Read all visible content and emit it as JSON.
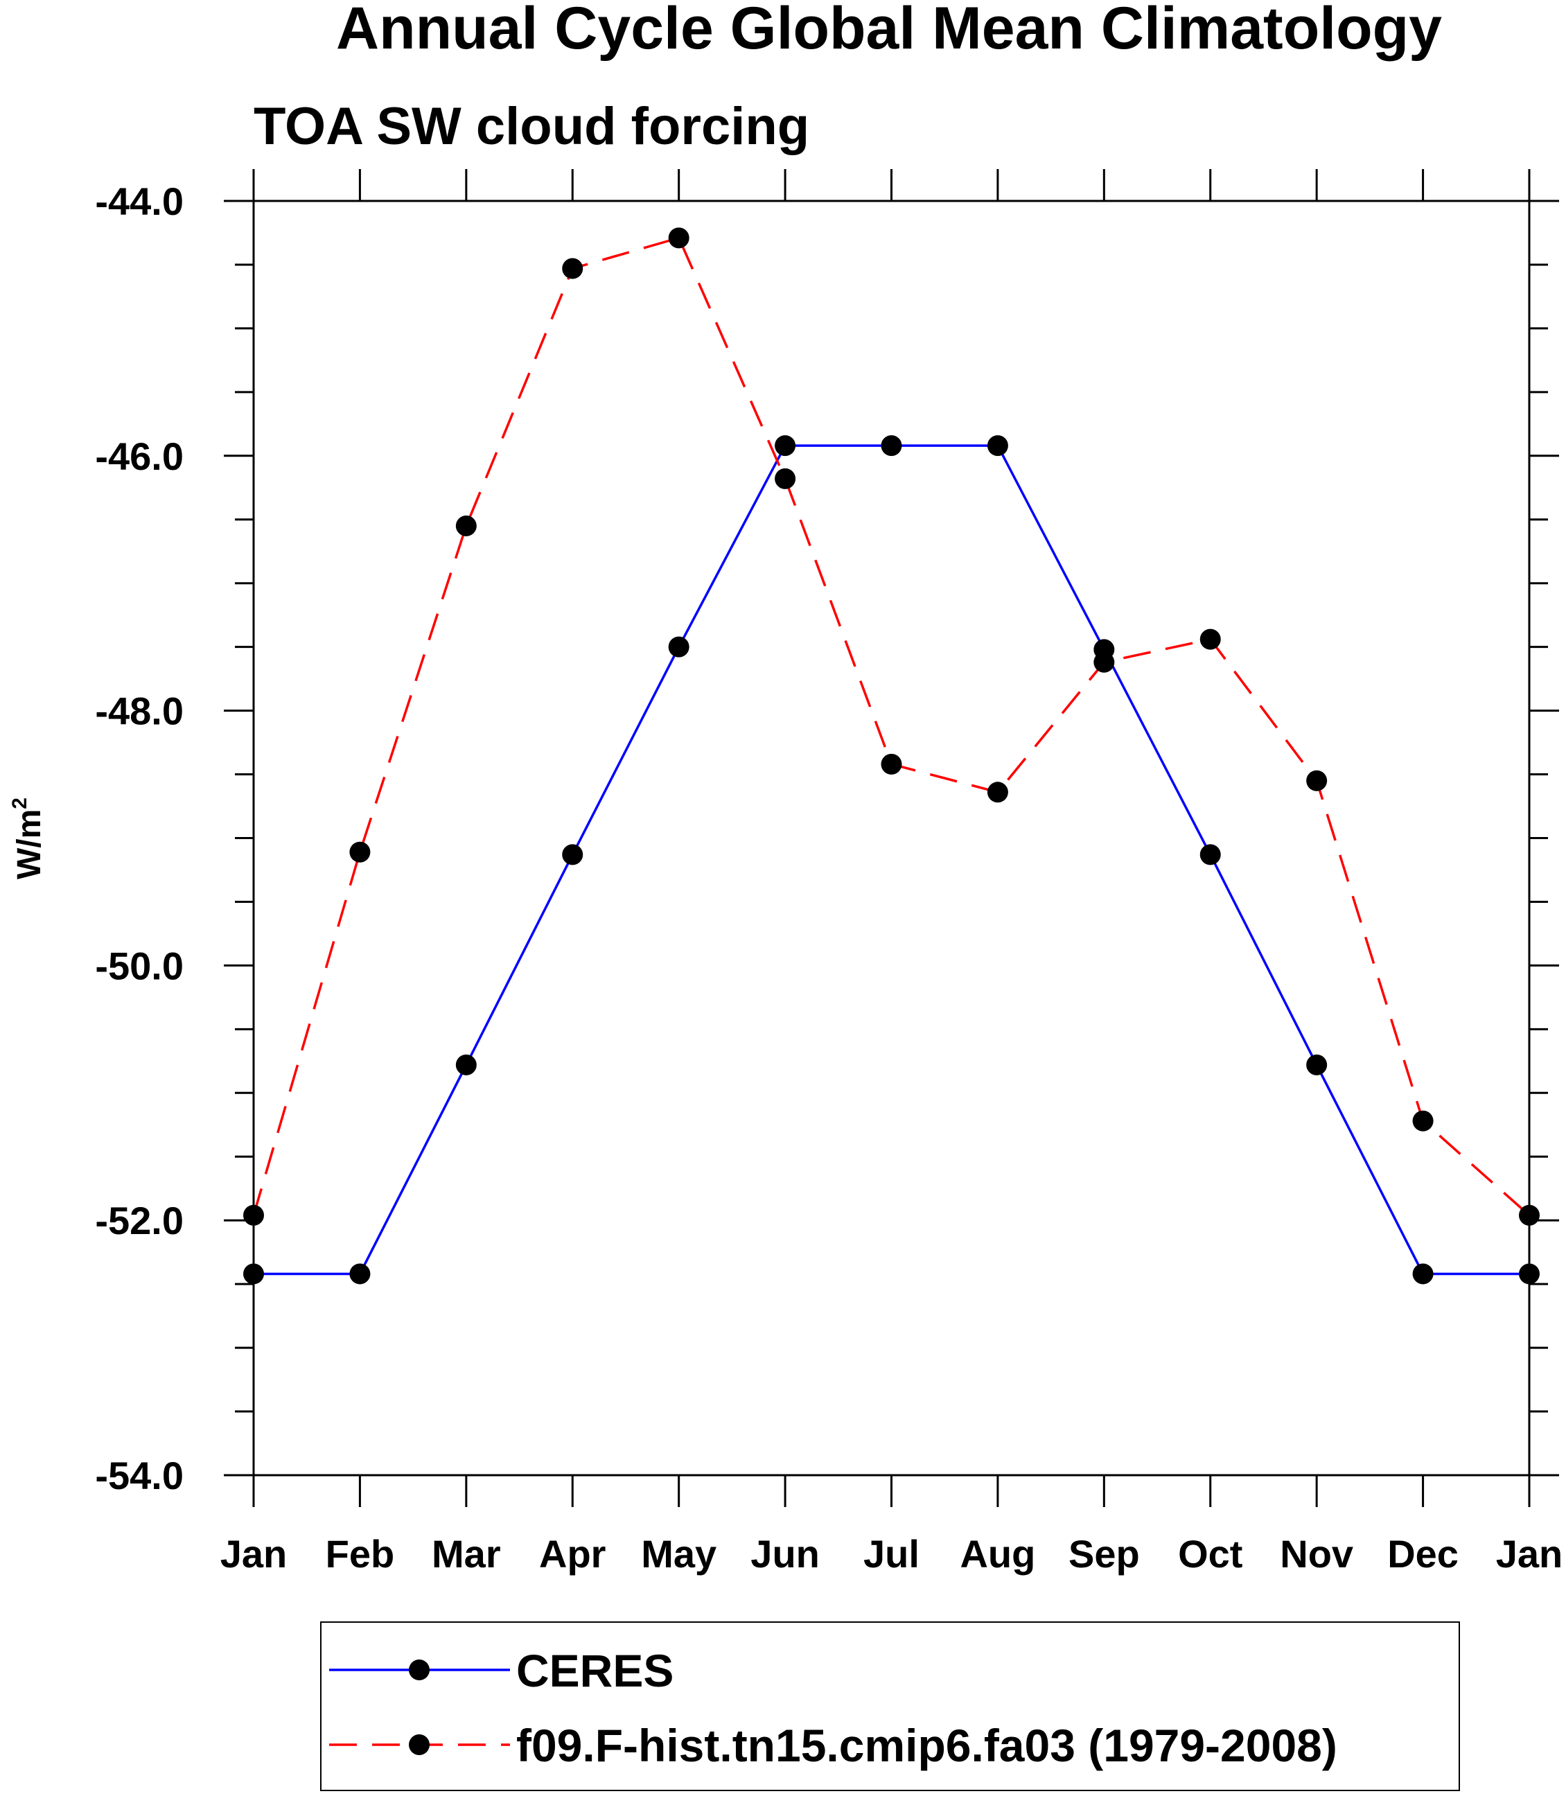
{
  "chart_data": {
    "type": "line",
    "title": "Annual Cycle Global Mean Climatology",
    "subtitle": "TOA SW cloud forcing",
    "xlabel": "",
    "ylabel": "W/m",
    "ylabel_superscript": "2",
    "categories": [
      "Jan",
      "Feb",
      "Mar",
      "Apr",
      "May",
      "Jun",
      "Jul",
      "Aug",
      "Sep",
      "Oct",
      "Nov",
      "Dec",
      "Jan"
    ],
    "ylim": [
      -54.0,
      -44.0
    ],
    "yticks": [
      -44.0,
      -46.0,
      -48.0,
      -50.0,
      -52.0,
      -54.0
    ],
    "ytick_labels": [
      "-44.0",
      "-46.0",
      "-48.0",
      "-50.0",
      "-52.0",
      "-54.0"
    ],
    "grid": false,
    "legend_position": "bottom",
    "series": [
      {
        "name": "CERES",
        "color": "#0000ff",
        "dash": "solid",
        "values": [
          -52.42,
          -52.42,
          -50.78,
          -49.13,
          -47.5,
          -45.92,
          -45.92,
          -45.92,
          -47.52,
          -49.13,
          -50.78,
          -52.42,
          -52.42
        ]
      },
      {
        "name": "f09.F-hist.tn15.cmip6.fa03 (1979-2008)",
        "color": "#ff0000",
        "dash": "dashed",
        "values": [
          -51.96,
          -49.11,
          -46.55,
          -44.53,
          -44.29,
          -46.18,
          -48.42,
          -48.64,
          -47.62,
          -47.44,
          -48.55,
          -51.22,
          -51.96
        ]
      }
    ]
  }
}
